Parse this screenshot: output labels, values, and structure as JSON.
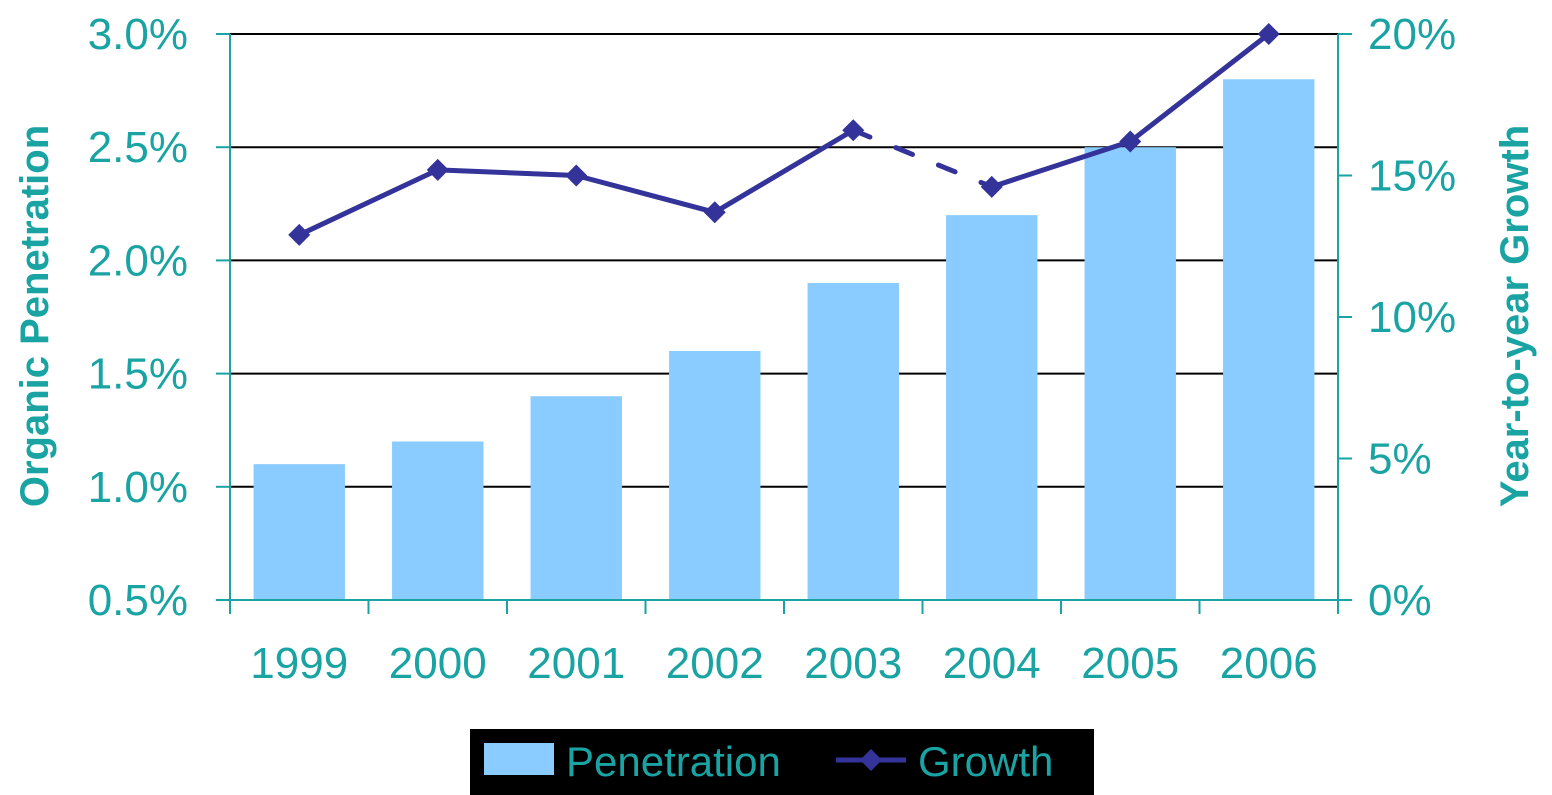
{
  "chart_data": {
    "type": "bar",
    "categories": [
      "1999",
      "2000",
      "2001",
      "2002",
      "2003",
      "2004",
      "2005",
      "2006"
    ],
    "series": [
      {
        "name": "Penetration",
        "type": "bar",
        "axis": "left",
        "values": [
          1.1,
          1.2,
          1.4,
          1.6,
          1.9,
          2.2,
          2.5,
          2.8
        ]
      },
      {
        "name": "Growth",
        "type": "line",
        "axis": "right",
        "values": [
          12.9,
          15.2,
          15.0,
          13.7,
          16.6,
          14.6,
          16.2,
          20.0
        ],
        "dashed_segments": [
          [
            4,
            5
          ]
        ]
      }
    ],
    "ylabel": "Organic Penetration",
    "y2label": "Year-to-year Growth",
    "ylim": [
      0.5,
      3.0
    ],
    "y2lim": [
      0,
      20
    ],
    "yticks": [
      "0.5%",
      "1.0%",
      "1.5%",
      "2.0%",
      "2.5%",
      "3.0%"
    ],
    "y2ticks": [
      "0%",
      "5%",
      "10%",
      "15%",
      "20%"
    ],
    "grid": true,
    "legend_position": "bottom",
    "colors": {
      "bar": "#8accff",
      "line": "#33339a",
      "axis": "#1aa3a3",
      "text": "#1aa3a3",
      "grid": "#000000",
      "legend_bg": "#000000"
    }
  }
}
